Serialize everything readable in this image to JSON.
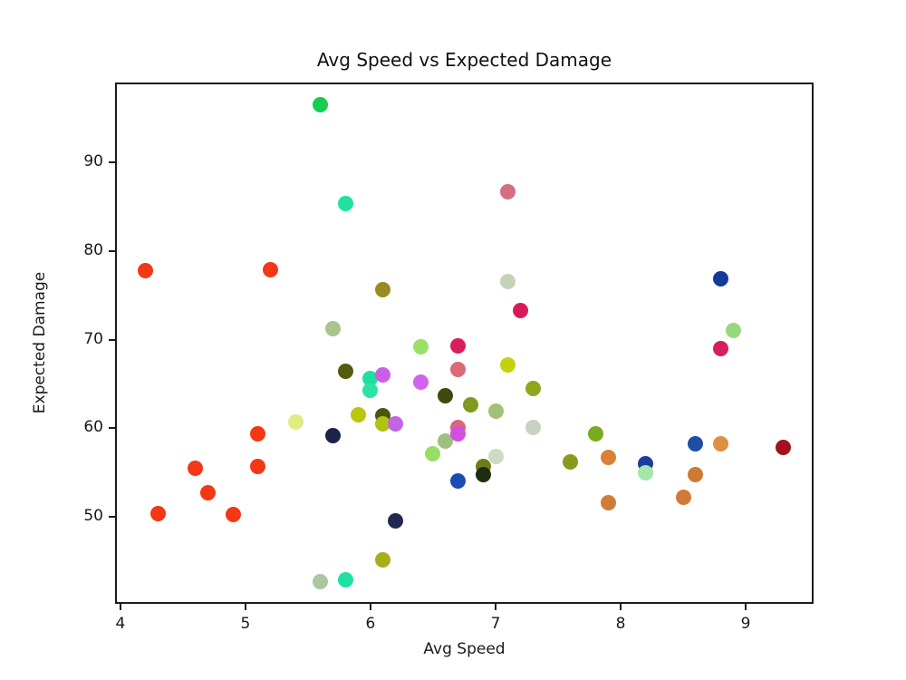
{
  "chart_data": {
    "type": "scatter",
    "title": "Avg Speed vs Expected Damage",
    "xlabel": "Avg Speed",
    "ylabel": "Expected Damage",
    "xlim": [
      3.957,
      9.543
    ],
    "ylim": [
      40.2,
      99.0
    ],
    "xticks": [
      4,
      5,
      6,
      7,
      8,
      9
    ],
    "yticks": [
      50,
      60,
      70,
      80,
      90
    ],
    "grid": false,
    "legend": null,
    "points": [
      {
        "x": 4.2,
        "y": 77.8,
        "color": "#f23814"
      },
      {
        "x": 4.3,
        "y": 50.4,
        "color": "#f23814"
      },
      {
        "x": 4.6,
        "y": 55.5,
        "color": "#f23814"
      },
      {
        "x": 4.7,
        "y": 52.7,
        "color": "#f23814"
      },
      {
        "x": 4.9,
        "y": 50.3,
        "color": "#f23814"
      },
      {
        "x": 5.1,
        "y": 59.4,
        "color": "#f23814"
      },
      {
        "x": 5.1,
        "y": 55.7,
        "color": "#f23814"
      },
      {
        "x": 5.2,
        "y": 77.9,
        "color": "#f23814"
      },
      {
        "x": 5.4,
        "y": 60.7,
        "color": "#dfeb83"
      },
      {
        "x": 5.6,
        "y": 96.5,
        "color": "#15cd4f"
      },
      {
        "x": 5.6,
        "y": 42.7,
        "color": "#aac7a1"
      },
      {
        "x": 5.7,
        "y": 71.2,
        "color": "#a9c48c"
      },
      {
        "x": 5.7,
        "y": 59.2,
        "color": "#1b2448"
      },
      {
        "x": 5.8,
        "y": 85.3,
        "color": "#1fe2a2"
      },
      {
        "x": 5.8,
        "y": 66.4,
        "color": "#545c12"
      },
      {
        "x": 5.8,
        "y": 42.9,
        "color": "#1fe2a2"
      },
      {
        "x": 5.9,
        "y": 61.5,
        "color": "#b8c60e"
      },
      {
        "x": 6.0,
        "y": 65.6,
        "color": "#1ddf9e"
      },
      {
        "x": 6.0,
        "y": 64.3,
        "color": "#2ae3a5"
      },
      {
        "x": 6.1,
        "y": 75.6,
        "color": "#9b8a23"
      },
      {
        "x": 6.1,
        "y": 66.0,
        "color": "#ca5fe6"
      },
      {
        "x": 6.1,
        "y": 61.4,
        "color": "#4d540e"
      },
      {
        "x": 6.1,
        "y": 60.5,
        "color": "#b1c211"
      },
      {
        "x": 6.1,
        "y": 45.2,
        "color": "#a3b019"
      },
      {
        "x": 6.2,
        "y": 60.5,
        "color": "#c364e3"
      },
      {
        "x": 6.2,
        "y": 49.6,
        "color": "#232850"
      },
      {
        "x": 6.4,
        "y": 69.2,
        "color": "#9ae066"
      },
      {
        "x": 6.4,
        "y": 65.2,
        "color": "#d263ea"
      },
      {
        "x": 6.5,
        "y": 57.1,
        "color": "#97dd66"
      },
      {
        "x": 6.6,
        "y": 63.7,
        "color": "#3f4a0d"
      },
      {
        "x": 6.6,
        "y": 58.6,
        "color": "#9dbf80"
      },
      {
        "x": 6.7,
        "y": 69.3,
        "color": "#d81e5b"
      },
      {
        "x": 6.7,
        "y": 66.6,
        "color": "#d96b77"
      },
      {
        "x": 6.7,
        "y": 60.1,
        "color": "#d9667a"
      },
      {
        "x": 6.7,
        "y": 59.4,
        "color": "#d24fe0"
      },
      {
        "x": 6.7,
        "y": 54.1,
        "color": "#1a4cb2"
      },
      {
        "x": 6.8,
        "y": 62.6,
        "color": "#7f9a1f"
      },
      {
        "x": 6.9,
        "y": 55.7,
        "color": "#6e7d14"
      },
      {
        "x": 6.9,
        "y": 54.8,
        "color": "#1e2c0f"
      },
      {
        "x": 7.0,
        "y": 61.9,
        "color": "#a2c077"
      },
      {
        "x": 7.0,
        "y": 56.8,
        "color": "#ccdcc5"
      },
      {
        "x": 7.1,
        "y": 86.7,
        "color": "#d46f80"
      },
      {
        "x": 7.1,
        "y": 76.6,
        "color": "#c5d4b6"
      },
      {
        "x": 7.1,
        "y": 67.1,
        "color": "#c3d110"
      },
      {
        "x": 7.2,
        "y": 73.3,
        "color": "#d81b56"
      },
      {
        "x": 7.3,
        "y": 64.5,
        "color": "#8fa71d"
      },
      {
        "x": 7.3,
        "y": 60.1,
        "color": "#c6d2c2"
      },
      {
        "x": 7.6,
        "y": 56.2,
        "color": "#8a9a20"
      },
      {
        "x": 7.8,
        "y": 59.4,
        "color": "#7aab22"
      },
      {
        "x": 7.9,
        "y": 56.7,
        "color": "#d9813a"
      },
      {
        "x": 7.9,
        "y": 51.6,
        "color": "#d07c36"
      },
      {
        "x": 8.2,
        "y": 56.0,
        "color": "#1b3f9e"
      },
      {
        "x": 8.2,
        "y": 55.0,
        "color": "#a5e6aa"
      },
      {
        "x": 8.5,
        "y": 52.2,
        "color": "#d2793a"
      },
      {
        "x": 8.6,
        "y": 58.3,
        "color": "#1d4fa4"
      },
      {
        "x": 8.6,
        "y": 54.8,
        "color": "#ce7a35"
      },
      {
        "x": 8.8,
        "y": 76.9,
        "color": "#143a9a"
      },
      {
        "x": 8.8,
        "y": 69.0,
        "color": "#d6205c"
      },
      {
        "x": 8.8,
        "y": 58.2,
        "color": "#dd8f43"
      },
      {
        "x": 8.9,
        "y": 71.0,
        "color": "#97d87f"
      },
      {
        "x": 9.3,
        "y": 57.8,
        "color": "#a50f1e"
      }
    ]
  }
}
